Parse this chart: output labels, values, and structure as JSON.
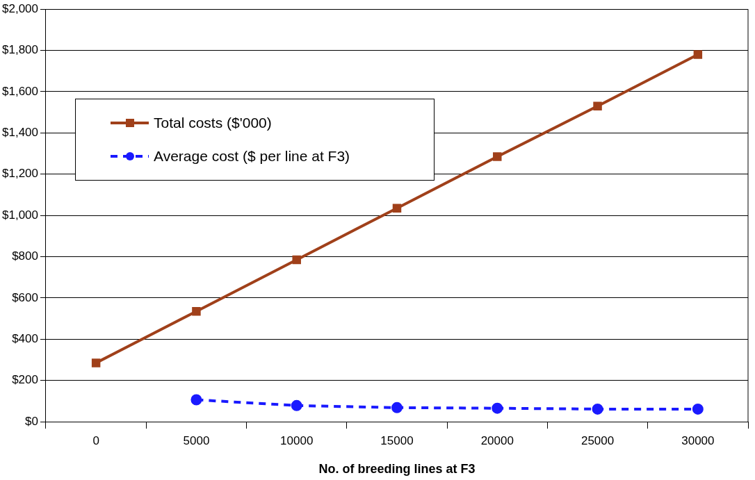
{
  "chart_data": {
    "type": "line",
    "xlabel": "No. of breeding lines at F3",
    "categories": [
      "0",
      "5000",
      "10000",
      "15000",
      "20000",
      "25000",
      "30000"
    ],
    "series": [
      {
        "name": "Total costs ($'000)",
        "color": "#a0401a",
        "marker": "square",
        "line_style": "solid",
        "values": [
          285,
          535,
          785,
          1035,
          1285,
          1530,
          1780
        ]
      },
      {
        "name": "Average cost ($ per line at F3)",
        "color": "#1a1aff",
        "marker": "circle",
        "line_style": "dashed",
        "values": [
          null,
          106,
          78,
          68,
          65,
          61,
          61
        ]
      }
    ],
    "ylim": [
      0,
      2000
    ],
    "yticks": [
      {
        "value": 0,
        "label": "$0"
      },
      {
        "value": 200,
        "label": "$200"
      },
      {
        "value": 400,
        "label": "$400"
      },
      {
        "value": 600,
        "label": "$600"
      },
      {
        "value": 800,
        "label": "$800"
      },
      {
        "value": 1000,
        "label": "$1,000"
      },
      {
        "value": 1200,
        "label": "$1,200"
      },
      {
        "value": 1400,
        "label": "$1,400"
      },
      {
        "value": 1600,
        "label": "$1,600"
      },
      {
        "value": 1800,
        "label": "$1,800"
      },
      {
        "value": 2000,
        "label": "$2,000"
      }
    ],
    "grid": "y",
    "legend": "top left"
  }
}
